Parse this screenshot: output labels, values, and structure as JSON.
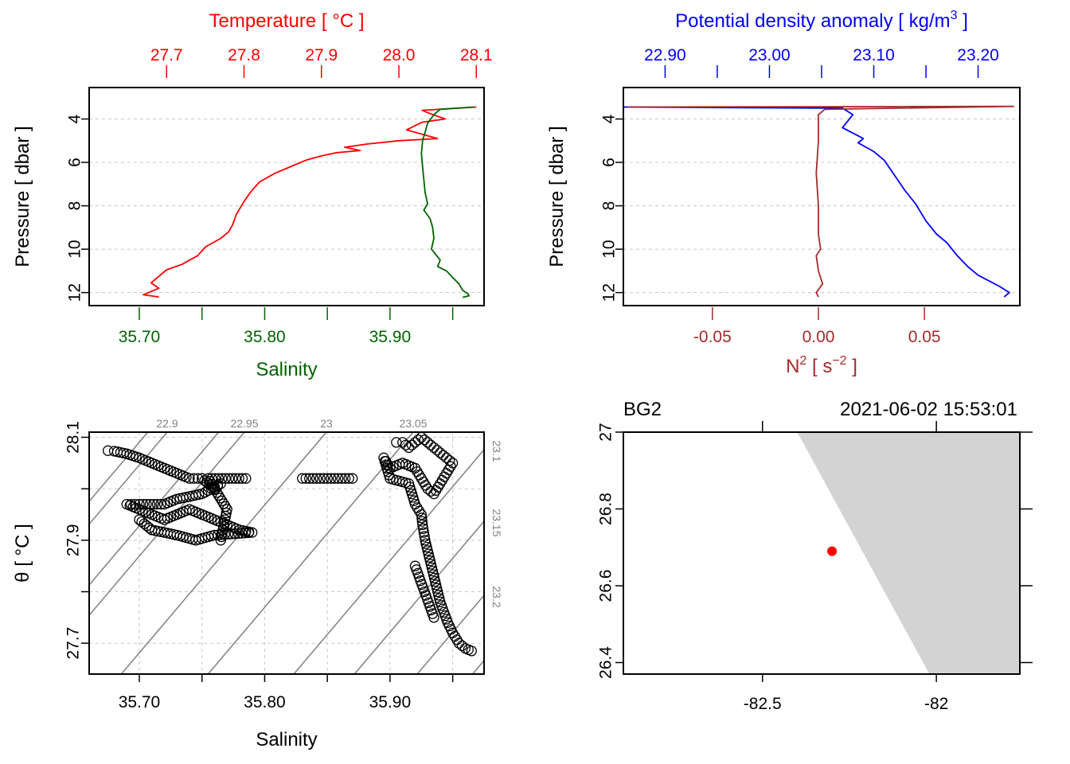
{
  "colors": {
    "temperature": "#ff0000",
    "salinity": "#006400",
    "density": "#0000ff",
    "n2": "#a52a2a",
    "points": "#000000",
    "isopycnal": "#808080",
    "coast": "#d3d3d3",
    "station": "#ff0000"
  },
  "chart_data": [
    {
      "id": "profile-ts",
      "type": "line",
      "title": "Temperature [ °C ]",
      "xlabel": "Salinity",
      "ylabel": "Pressure [ dbar ]",
      "ylim": [
        12.6,
        2.55
      ],
      "y_ticks": [
        4,
        6,
        8,
        10,
        12
      ],
      "top_axis": {
        "label": "Temperature [ °C ]",
        "lim": [
          27.6,
          28.11
        ],
        "ticks": [
          27.7,
          27.8,
          27.9,
          28.0,
          28.1
        ],
        "tick_labels": [
          "27.7",
          "27.8",
          "27.9",
          "28.0",
          "28.1"
        ]
      },
      "bottom_axis": {
        "label": "Salinity",
        "lim": [
          35.66,
          35.975
        ],
        "ticks": [
          35.7,
          35.75,
          35.8,
          35.85,
          35.9,
          35.95
        ],
        "tick_labels": [
          "35.70",
          "",
          "35.80",
          "",
          "35.90",
          ""
        ]
      },
      "series": [
        {
          "name": "temperature",
          "axis": "top",
          "x": [
            28.1,
            28.03,
            28.04,
            28.06,
            28.03,
            28.01,
            28.03,
            28.05,
            28.0,
            27.96,
            27.93,
            27.95,
            27.92,
            27.9,
            27.88,
            27.86,
            27.84,
            27.82,
            27.81,
            27.8,
            27.79,
            27.785,
            27.78,
            27.77,
            27.76,
            27.75,
            27.74,
            27.73,
            27.72,
            27.7,
            27.69,
            27.68,
            27.69,
            27.68,
            27.67,
            27.69
          ],
          "y": [
            3.45,
            3.6,
            3.75,
            4.0,
            4.15,
            4.5,
            4.7,
            4.9,
            5.0,
            5.15,
            5.3,
            5.45,
            5.55,
            5.7,
            5.9,
            6.2,
            6.5,
            6.9,
            7.3,
            7.8,
            8.4,
            8.9,
            9.2,
            9.5,
            9.7,
            9.9,
            10.3,
            10.5,
            10.7,
            10.95,
            11.25,
            11.55,
            11.8,
            11.95,
            12.1,
            12.2
          ]
        },
        {
          "name": "salinity",
          "axis": "bottom",
          "x": [
            35.967,
            35.94,
            35.935,
            35.93,
            35.928,
            35.926,
            35.925,
            35.926,
            35.927,
            35.928,
            35.93,
            35.927,
            35.932,
            35.934,
            35.935,
            35.933,
            35.94,
            35.938,
            35.945,
            35.95,
            35.955,
            35.958,
            35.962,
            35.963,
            35.958
          ],
          "y": [
            3.45,
            3.55,
            3.8,
            4.2,
            4.6,
            5.0,
            5.6,
            6.2,
            6.8,
            7.4,
            7.9,
            8.2,
            8.6,
            9.0,
            9.5,
            10.0,
            10.5,
            10.8,
            11.0,
            11.3,
            11.6,
            11.9,
            12.05,
            12.15,
            12.22
          ]
        }
      ]
    },
    {
      "id": "profile-density",
      "type": "line",
      "title": "Potential density anomaly [ kg/m³ ]",
      "xlabel": "N² [ s⁻² ]",
      "ylabel": "Pressure [ dbar ]",
      "ylim": [
        12.6,
        2.55
      ],
      "y_ticks": [
        4,
        6,
        8,
        10,
        12
      ],
      "top_axis": {
        "label": "Potential density anomaly [ kg/m³ ]",
        "lim": [
          22.86,
          23.24
        ],
        "ticks": [
          22.9,
          22.95,
          23.0,
          23.05,
          23.1,
          23.15,
          23.2
        ],
        "tick_labels": [
          "22.90",
          "",
          "23.00",
          "",
          "23.10",
          "",
          "23.20"
        ]
      },
      "bottom_axis": {
        "label": "N² [ s⁻² ]",
        "lim": [
          -0.092,
          0.095
        ],
        "ticks": [
          -0.05,
          0.0,
          0.05
        ],
        "tick_labels": [
          "-0.05",
          "0.00",
          "0.05"
        ]
      },
      "series": [
        {
          "name": "density",
          "axis": "top",
          "x": [
            22.86,
            23.07,
            23.08,
            23.07,
            23.09,
            23.085,
            23.1,
            23.11,
            23.12,
            23.13,
            23.14,
            23.145,
            23.15,
            23.16,
            23.17,
            23.18,
            23.19,
            23.2,
            23.22,
            23.23,
            23.225
          ],
          "y": [
            3.45,
            3.5,
            3.8,
            4.4,
            4.9,
            5.1,
            5.5,
            5.9,
            6.6,
            7.3,
            7.9,
            8.3,
            8.7,
            9.3,
            9.7,
            10.3,
            10.8,
            11.2,
            11.7,
            12.0,
            12.2
          ]
        },
        {
          "name": "N2",
          "axis": "bottom",
          "x": [
            -0.09,
            0.092,
            0.003,
            0.0,
            0.0,
            -0.001,
            0.0,
            0.0,
            0.001,
            -0.001,
            0.0,
            0.002,
            -0.001,
            0.0
          ],
          "y": [
            3.45,
            3.42,
            3.55,
            3.8,
            5.0,
            6.5,
            8.0,
            9.3,
            10.0,
            10.3,
            11.0,
            11.6,
            12.0,
            12.2
          ]
        }
      ]
    },
    {
      "id": "ts-diagram",
      "type": "scatter",
      "title": "",
      "xlabel": "Salinity",
      "ylabel": "θ [ °C ]",
      "xlim": [
        35.66,
        35.975
      ],
      "ylim": [
        27.64,
        28.11
      ],
      "x_ticks": [
        35.7,
        35.75,
        35.8,
        35.85,
        35.9,
        35.95
      ],
      "x_tick_labels": [
        "35.70",
        "",
        "35.80",
        "",
        "35.90",
        ""
      ],
      "y_ticks": [
        27.7,
        27.8,
        27.9,
        28.0,
        28.1
      ],
      "y_tick_labels": [
        "27.7",
        "",
        "27.9",
        "",
        "28.1"
      ],
      "isopycnal_labels": {
        "top": [
          "22.9",
          "22.95",
          "23",
          "23.05"
        ],
        "right": [
          "23.1",
          "23.15",
          "23.2"
        ]
      },
      "clusters": [
        {
          "name": "near-surface",
          "points": [
            [
              35.675,
              28.074
            ],
            [
              35.68,
              28.073
            ],
            [
              35.69,
              28.068
            ],
            [
              35.7,
              28.06
            ],
            [
              35.71,
              28.05
            ],
            [
              35.72,
              28.04
            ],
            [
              35.73,
              28.03
            ],
            [
              35.74,
              28.02
            ],
            [
              35.75,
              28.02
            ],
            [
              35.76,
              28.0
            ],
            [
              35.765,
              28.01
            ],
            [
              35.75,
              27.99
            ],
            [
              35.73,
              27.98
            ],
            [
              35.72,
              27.97
            ],
            [
              35.7,
              27.97
            ],
            [
              35.69,
              27.97
            ],
            [
              35.71,
              27.95
            ],
            [
              35.72,
              27.94
            ],
            [
              35.73,
              27.95
            ],
            [
              35.74,
              27.96
            ],
            [
              35.75,
              27.95
            ],
            [
              35.76,
              27.94
            ],
            [
              35.77,
              27.93
            ],
            [
              35.78,
              27.92
            ],
            [
              35.79,
              27.915
            ],
            [
              35.76,
              27.91
            ],
            [
              35.745,
              27.9
            ],
            [
              35.73,
              27.91
            ],
            [
              35.71,
              27.92
            ],
            [
              35.7,
              27.94
            ],
            [
              35.765,
              27.9
            ],
            [
              35.77,
              27.96
            ],
            [
              35.755,
              28.02
            ],
            [
              35.785,
              28.02
            ],
            [
              35.83,
              28.02
            ],
            [
              35.87,
              28.02
            ]
          ]
        },
        {
          "name": "deep",
          "points": [
            [
              35.905,
              28.09
            ],
            [
              35.91,
              28.09
            ],
            [
              35.915,
              28.08
            ],
            [
              35.92,
              28.09
            ],
            [
              35.925,
              28.1
            ],
            [
              35.93,
              28.09
            ],
            [
              35.935,
              28.08
            ],
            [
              35.94,
              28.07
            ],
            [
              35.945,
              28.06
            ],
            [
              35.95,
              28.05
            ],
            [
              35.945,
              28.03
            ],
            [
              35.94,
              28.01
            ],
            [
              35.935,
              27.99
            ],
            [
              35.93,
              28.0
            ],
            [
              35.925,
              28.02
            ],
            [
              35.92,
              28.04
            ],
            [
              35.91,
              28.05
            ],
            [
              35.9,
              28.04
            ],
            [
              35.895,
              28.06
            ],
            [
              35.9,
              28.02
            ],
            [
              35.915,
              28.01
            ],
            [
              35.92,
              27.97
            ],
            [
              35.925,
              27.95
            ],
            [
              35.926,
              27.93
            ],
            [
              35.928,
              27.9
            ],
            [
              35.93,
              27.88
            ],
            [
              35.932,
              27.86
            ],
            [
              35.934,
              27.84
            ],
            [
              35.936,
              27.82
            ],
            [
              35.938,
              27.8
            ],
            [
              35.94,
              27.78
            ],
            [
              35.943,
              27.76
            ],
            [
              35.946,
              27.74
            ],
            [
              35.95,
              27.72
            ],
            [
              35.955,
              27.7
            ],
            [
              35.96,
              27.69
            ],
            [
              35.965,
              27.685
            ],
            [
              35.92,
              27.85
            ],
            [
              35.935,
              27.75
            ]
          ]
        }
      ]
    },
    {
      "id": "station-map",
      "type": "scatter",
      "title": "BG2",
      "timestamp": "2021-06-02 15:53:01",
      "xlim": [
        -82.9,
        -81.76
      ],
      "ylim": [
        26.37,
        27.0
      ],
      "x_ticks": [
        -82.5,
        -82.0
      ],
      "x_tick_labels": [
        "-82.5",
        "-82"
      ],
      "y_ticks": [
        26.4,
        26.6,
        26.8,
        27.0
      ],
      "y_tick_labels": [
        "26.4",
        "26.6",
        "26.8",
        "27"
      ],
      "coast_polygon": [
        [
          -82.4,
          27.0
        ],
        [
          -81.76,
          27.0
        ],
        [
          -81.76,
          26.37
        ],
        [
          -82.02,
          26.37
        ]
      ],
      "station": {
        "lon": -82.3,
        "lat": 26.69
      }
    }
  ]
}
